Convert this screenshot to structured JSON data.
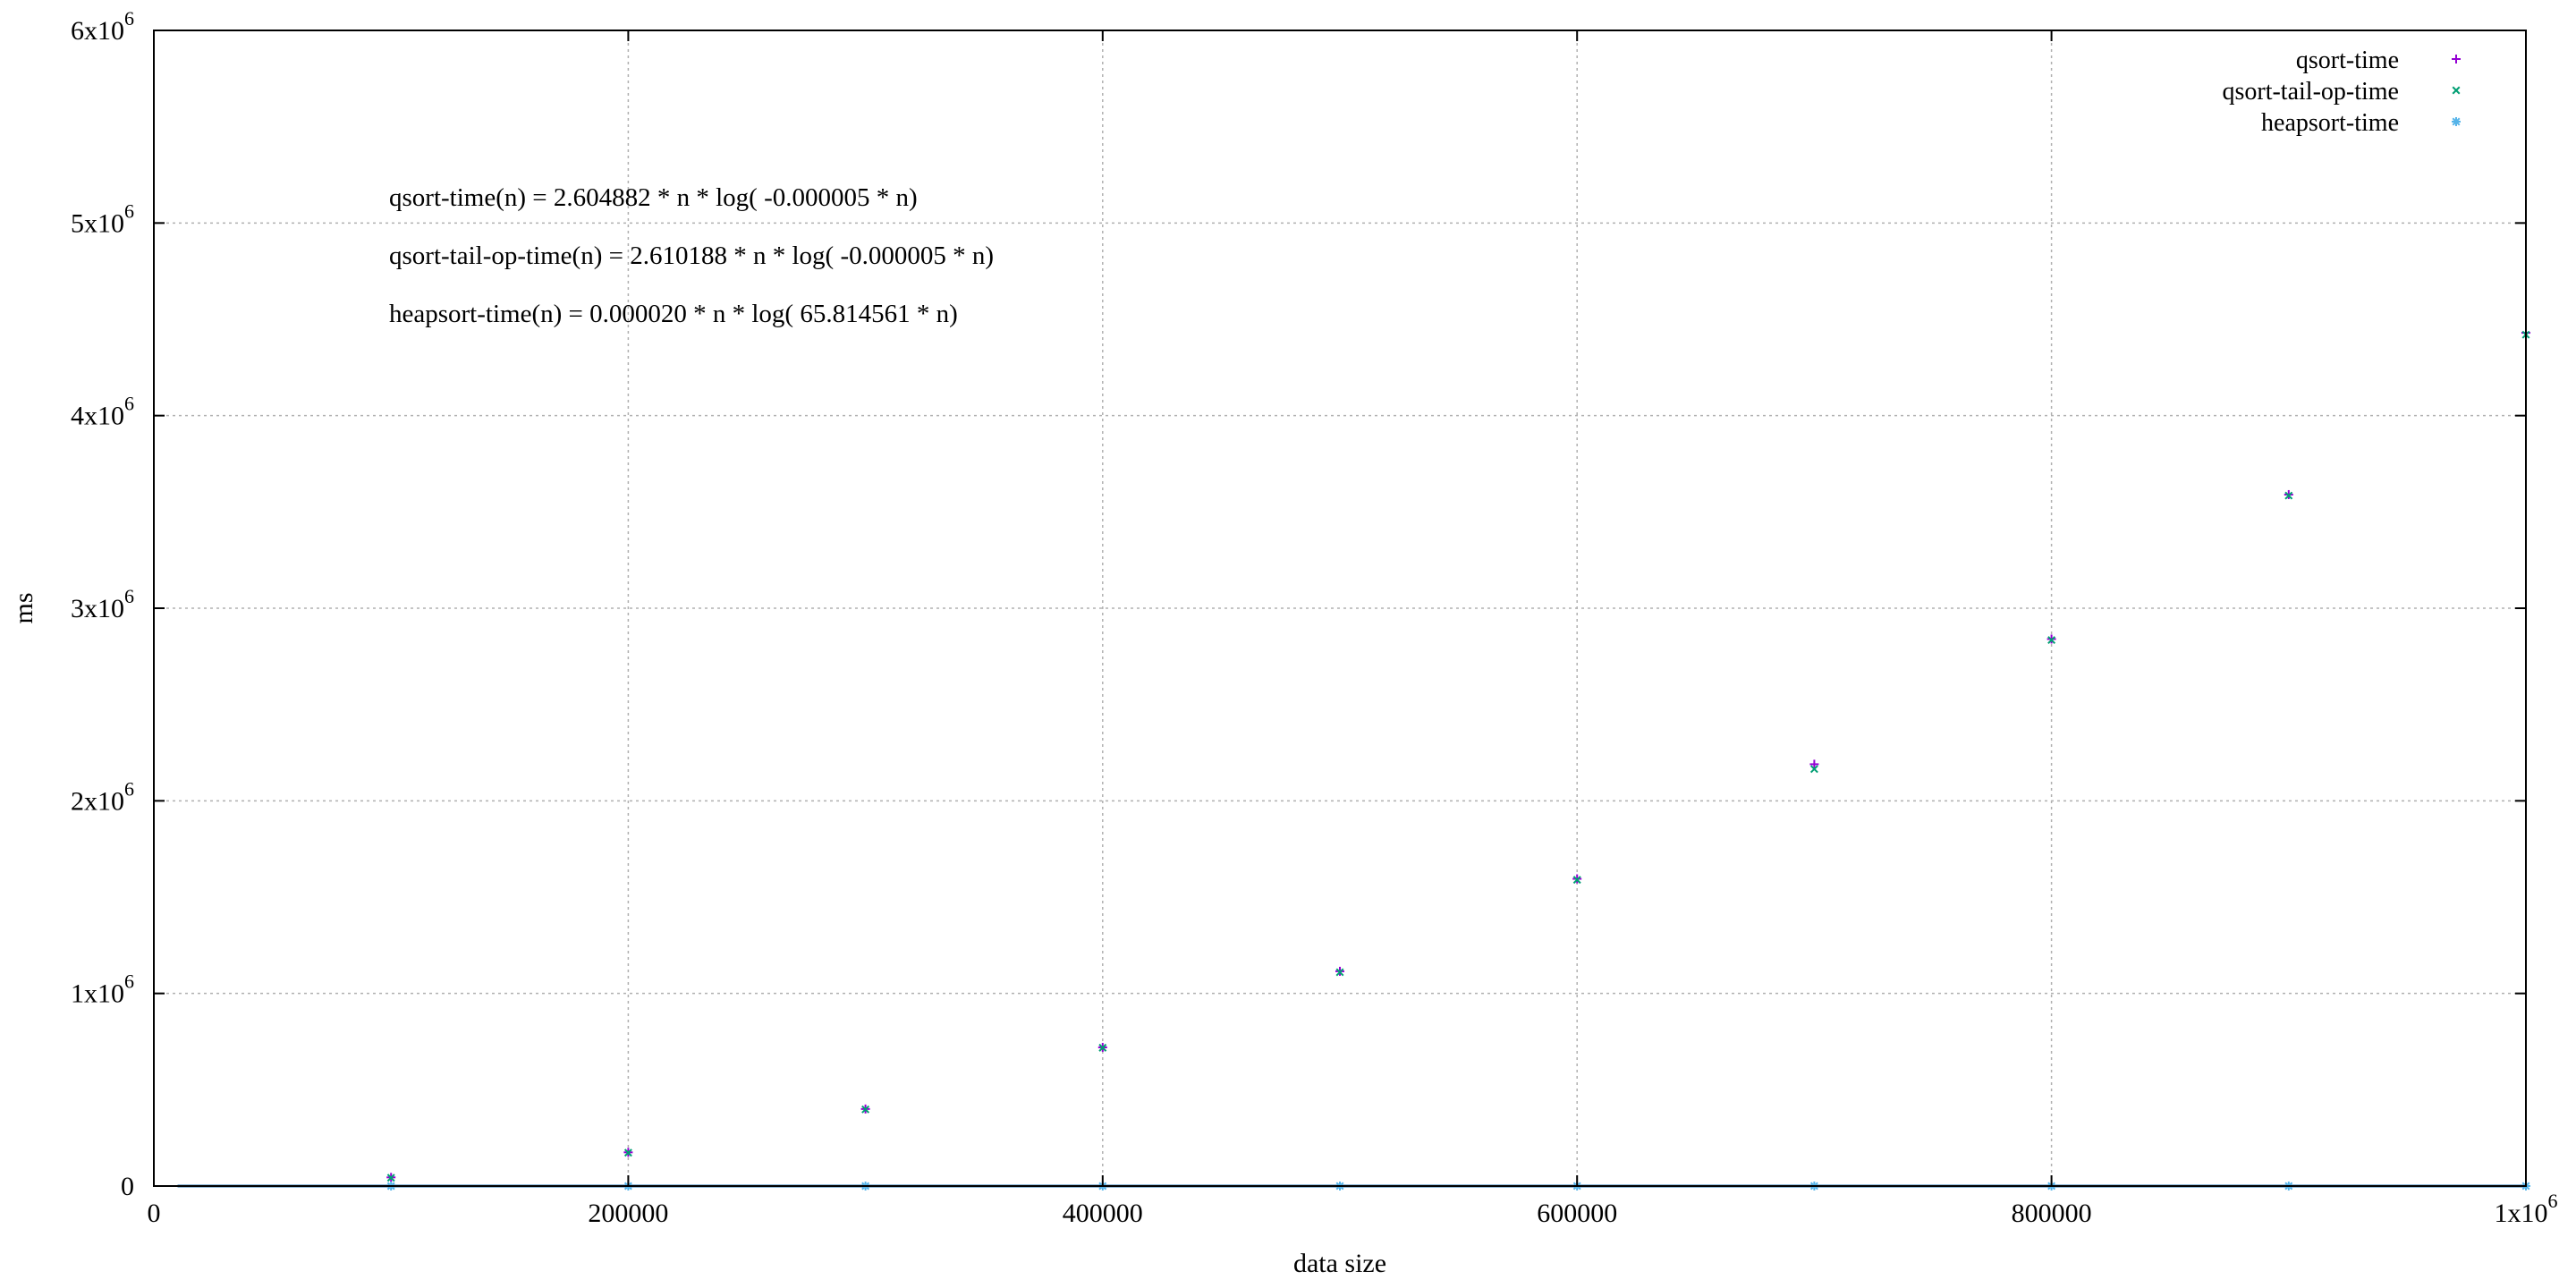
{
  "chart_data": {
    "type": "scatter",
    "title": "",
    "xlabel": "data size",
    "ylabel": "ms",
    "xlim": [
      0,
      1000000
    ],
    "ylim": [
      0,
      6000000
    ],
    "grid": true,
    "legend_position": "top-right",
    "x_ticks": [
      {
        "value": 0,
        "label": "0"
      },
      {
        "value": 200000,
        "label": "200000"
      },
      {
        "value": 400000,
        "label": "400000"
      },
      {
        "value": 600000,
        "label": "600000"
      },
      {
        "value": 800000,
        "label": "800000"
      },
      {
        "value": 1000000,
        "label": "1x10",
        "exp": "6"
      }
    ],
    "y_ticks": [
      {
        "value": 0,
        "label": "0"
      },
      {
        "value": 1000000,
        "label": "1x10",
        "exp": "6"
      },
      {
        "value": 2000000,
        "label": "2x10",
        "exp": "6"
      },
      {
        "value": 3000000,
        "label": "3x10",
        "exp": "6"
      },
      {
        "value": 4000000,
        "label": "4x10",
        "exp": "6"
      },
      {
        "value": 5000000,
        "label": "5x10",
        "exp": "6"
      },
      {
        "value": 6000000,
        "label": "6x10",
        "exp": "6"
      }
    ],
    "annotations": [
      "qsort-time(n) = 2.604882 * n * log( -0.000005 * n)",
      "qsort-tail-op-time(n) = 2.610188 * n * log( -0.000005 * n)",
      "heapsort-time(n) = 0.000020 * n * log( 65.814561 * n)"
    ],
    "series": [
      {
        "name": "qsort-time",
        "marker": "plus",
        "color": "#9400d3",
        "x": [
          100000,
          200000,
          300000,
          400000,
          500000,
          600000,
          700000,
          800000,
          900000,
          1000000
        ],
        "y": [
          45000,
          175000,
          400000,
          720000,
          1115000,
          1595000,
          2190000,
          2840000,
          3590000,
          4430000
        ]
      },
      {
        "name": "qsort-tail-op-time",
        "marker": "cross",
        "color": "#009e73",
        "x": [
          100000,
          200000,
          300000,
          400000,
          500000,
          600000,
          700000,
          800000,
          900000,
          1000000
        ],
        "y": [
          43000,
          173000,
          398000,
          718000,
          1110000,
          1590000,
          2165000,
          2835000,
          3585000,
          4420000
        ]
      },
      {
        "name": "heapsort-time",
        "marker": "star",
        "color": "#56b4e9",
        "x": [
          100000,
          200000,
          300000,
          400000,
          500000,
          600000,
          700000,
          800000,
          900000,
          1000000
        ],
        "y": [
          20,
          40,
          60,
          80,
          100,
          120,
          140,
          160,
          180,
          200
        ]
      }
    ],
    "fit_line_color": "#1f6fae"
  }
}
